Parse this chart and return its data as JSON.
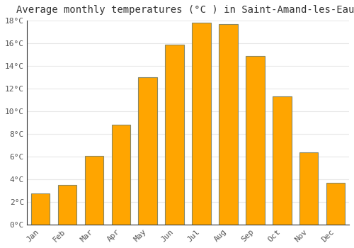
{
  "title": "Average monthly temperatures (°C ) in Saint-Amand-les-Eaux",
  "months": [
    "Jan",
    "Feb",
    "Mar",
    "Apr",
    "May",
    "Jun",
    "Jul",
    "Aug",
    "Sep",
    "Oct",
    "Nov",
    "Dec"
  ],
  "temperatures": [
    2.8,
    3.5,
    6.1,
    8.8,
    13.0,
    15.9,
    17.8,
    17.7,
    14.9,
    11.3,
    6.4,
    3.7
  ],
  "bar_color": "#FFA500",
  "bar_edge_color": "#888866",
  "bar_edge_width": 0.8,
  "ylim": [
    0,
    18
  ],
  "yticks": [
    0,
    2,
    4,
    6,
    8,
    10,
    12,
    14,
    16,
    18
  ],
  "background_color": "#ffffff",
  "plot_bg_color": "#ffffff",
  "grid_color": "#e8e8e8",
  "title_fontsize": 10,
  "tick_fontsize": 8,
  "tick_color": "#555555",
  "spine_color": "#333333"
}
